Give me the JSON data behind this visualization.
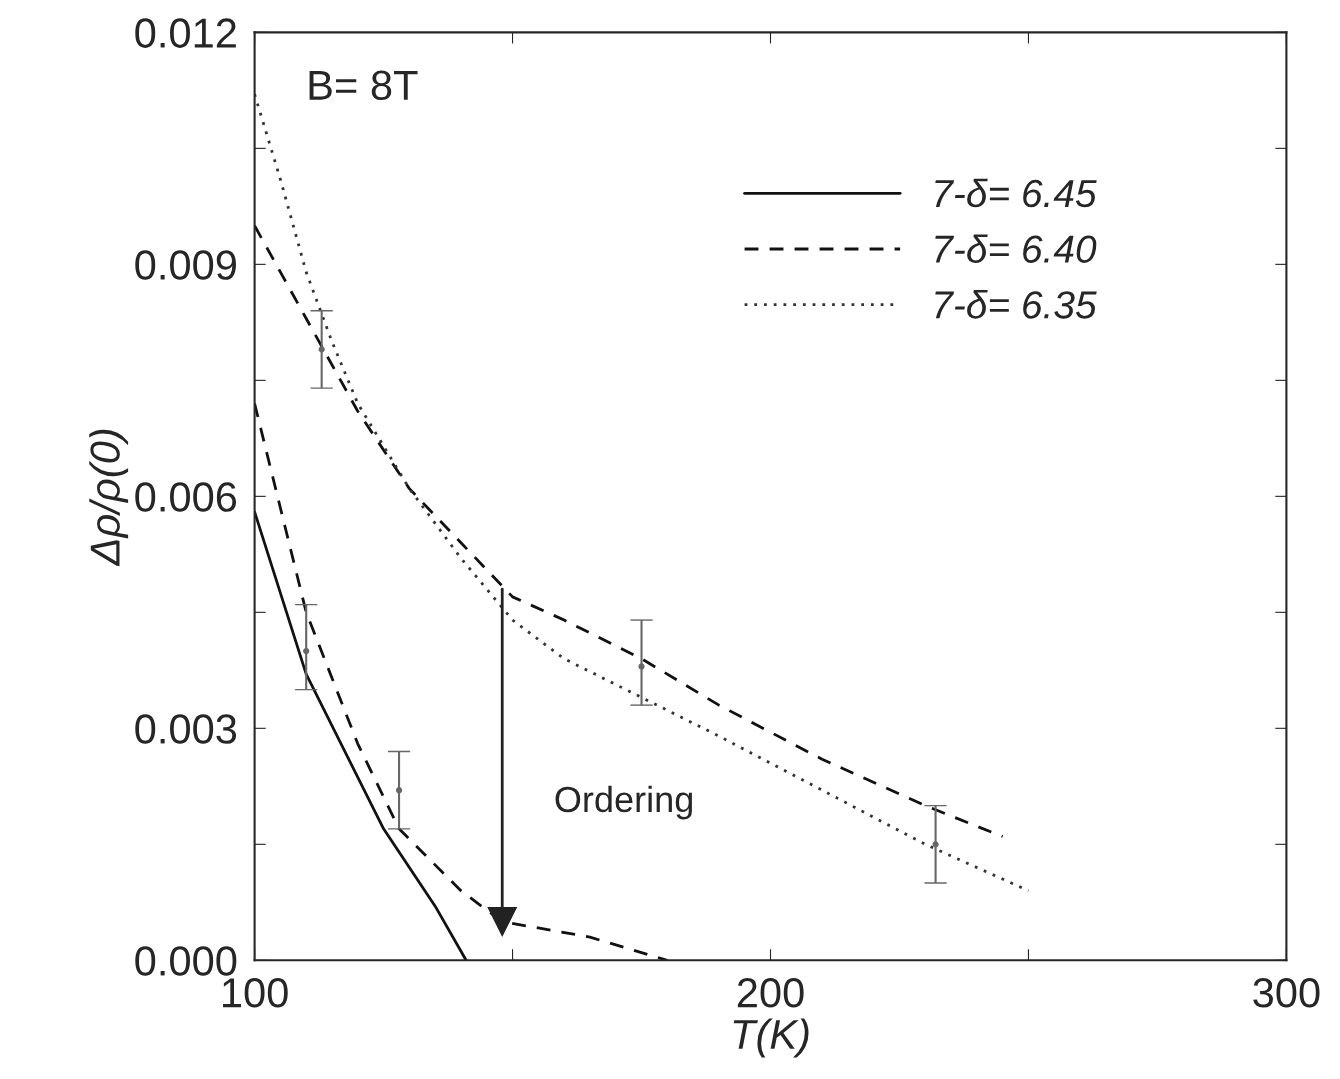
{
  "chart_data": {
    "type": "line",
    "xlabel": "T(K)",
    "ylabel": "Δρ/ρ(0)",
    "xlim": [
      100,
      300
    ],
    "ylim": [
      0,
      0.012
    ],
    "xticks": [
      100,
      {
        "value": 150,
        "label": null
      },
      200,
      {
        "value": 250,
        "label": null
      },
      300
    ],
    "yticks": [
      {
        "value": 0,
        "label": "0.000"
      },
      {
        "value": 0.0015,
        "label": null
      },
      {
        "value": 0.003,
        "label": "0.003"
      },
      {
        "value": 0.0045,
        "label": null
      },
      {
        "value": 0.006,
        "label": "0.006"
      },
      {
        "value": 0.0075,
        "label": null
      },
      {
        "value": 0.009,
        "label": "0.009"
      },
      {
        "value": 0.0105,
        "label": null
      },
      {
        "value": 0.012,
        "label": "0.012"
      }
    ],
    "grid": false,
    "legend": "top right",
    "annotations": [
      "B= 8T",
      "Ordering"
    ],
    "series": [
      {
        "name": "7-δ= 6.45",
        "color": "#111111",
        "line_style": "solid",
        "x": [
          100,
          110,
          125,
          135,
          141
        ],
        "values": [
          0.0058,
          0.0037,
          0.0017,
          0.0007,
          0.0
        ]
      },
      {
        "name": "7-δ= 6.40",
        "color": "#111111",
        "line_style": "dashed",
        "x": [
          100,
          110,
          120,
          130,
          140,
          150,
          160,
          175,
          190,
          210,
          230,
          245
        ],
        "values": [
          0.0095,
          0.0083,
          0.0071,
          0.0061,
          0.0054,
          0.0047,
          0.0044,
          0.0039,
          0.0033,
          0.0026,
          0.002,
          0.0016
        ]
      },
      {
        "name": "7-δ= 6.35",
        "color": "#333333",
        "line_style": "dotted",
        "x": [
          100,
          105,
          110,
          115,
          120,
          130,
          140,
          150,
          160,
          175,
          190,
          210,
          230,
          250
        ],
        "values": [
          0.0112,
          0.0101,
          0.0089,
          0.008,
          0.0072,
          0.0061,
          0.0052,
          0.0044,
          0.0039,
          0.0034,
          0.0029,
          0.0022,
          0.0015,
          0.0009
        ]
      },
      {
        "color": "#111111",
        "line_style": "dashed",
        "x": [
          100,
          110,
          120,
          128,
          140,
          148,
          165,
          180
        ],
        "values": [
          0.0072,
          0.0045,
          0.0028,
          0.0017,
          0.0009,
          0.0005,
          0.0003,
          0.0
        ]
      },
      {
        "type": "line",
        "color": "#222222",
        "line_style": "solid",
        "marker": "triangle",
        "x": [
          148,
          148
        ],
        "values": [
          0.0048,
          0.0005
        ]
      },
      {
        "type": "scatter",
        "marker": "circle",
        "color": "#666666",
        "x": [
          110,
          113,
          128,
          175,
          232
        ],
        "values": [
          0.004,
          0.0079,
          0.0022,
          0.0038,
          0.0015
        ],
        "errors": [
          [
            0.0035,
            0.0046
          ],
          [
            0.0074,
            0.0084
          ],
          [
            0.0017,
            0.0027
          ],
          [
            0.0033,
            0.0044
          ],
          [
            0.001,
            0.002
          ]
        ]
      }
    ]
  }
}
